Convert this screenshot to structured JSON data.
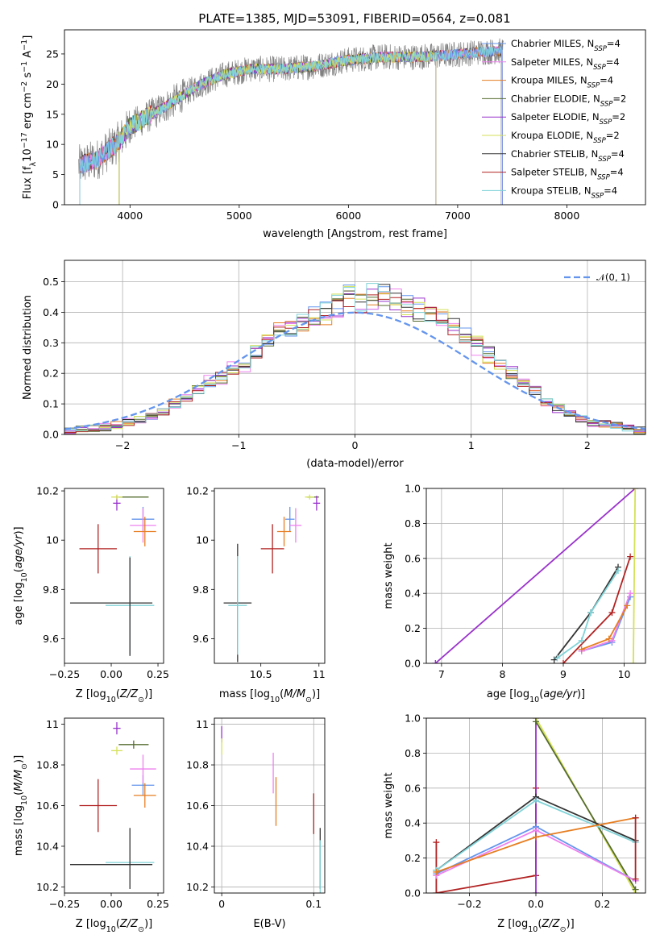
{
  "figure_title": "PLATE=1385, MJD=53091, FIBERID=0564, z=0.081",
  "colors": {
    "chabrier_miles": "#6495ed",
    "salpeter_miles": "#ee82ee",
    "kroupa_miles": "#e67e22",
    "chabrier_elodie": "#556b2f",
    "salpeter_elodie": "#9932cc",
    "kroupa_elodie": "#d4e157",
    "chabrier_stelib": "#333333",
    "salpeter_stelib": "#b22222",
    "kroupa_stelib": "#7fd3d8",
    "data": "#808080",
    "normal": "#6495ed",
    "grid": "#b0b0b0"
  },
  "chart_data": [
    {
      "id": "spectrum",
      "type": "line",
      "title": "PLATE=1385, MJD=53091, FIBERID=0564, z=0.081",
      "xlabel": "wavelength [Angstrom, rest frame]",
      "ylabel": "Flux [f_λ 10^-17 erg cm^-2 s^-1 A^-1]",
      "ylabel_parts": [
        "Flux [f",
        "λ",
        "10",
        "−17",
        " erg cm",
        "−2",
        " s",
        "−1",
        " A",
        "−1",
        "]"
      ],
      "xlim": [
        3400,
        8720
      ],
      "ylim": [
        0,
        29
      ],
      "xticks": [
        4000,
        5000,
        6000,
        7000,
        8000
      ],
      "yticks": [
        0,
        5,
        10,
        15,
        20,
        25
      ],
      "grid": false,
      "legend_position": "top-right",
      "legend": [
        {
          "name": "Chabrier MILES, N",
          "sub": "SSP",
          "tail": "=4",
          "color_key": "chabrier_miles"
        },
        {
          "name": "Salpeter MILES, N",
          "sub": "SSP",
          "tail": "=4",
          "color_key": "salpeter_miles"
        },
        {
          "name": "Kroupa MILES, N",
          "sub": "SSP",
          "tail": "=4",
          "color_key": "kroupa_miles"
        },
        {
          "name": "Chabrier ELODIE, N",
          "sub": "SSP",
          "tail": "=2",
          "color_key": "chabrier_elodie"
        },
        {
          "name": "Salpeter ELODIE, N",
          "sub": "SSP",
          "tail": "=2",
          "color_key": "salpeter_elodie"
        },
        {
          "name": "Kroupa ELODIE, N",
          "sub": "SSP",
          "tail": "=2",
          "color_key": "kroupa_elodie"
        },
        {
          "name": "Chabrier STELIB, N",
          "sub": "SSP",
          "tail": "=4",
          "color_key": "chabrier_stelib"
        },
        {
          "name": "Salpeter STELIB, N",
          "sub": "SSP",
          "tail": "=4",
          "color_key": "salpeter_stelib"
        },
        {
          "name": "Kroupa STELIB, N",
          "sub": "SSP",
          "tail": "=4",
          "color_key": "kroupa_stelib"
        }
      ],
      "continuum_knots": [
        [
          3530,
          6.5
        ],
        [
          3700,
          7.5
        ],
        [
          3900,
          10.5
        ],
        [
          4000,
          13.0
        ],
        [
          4300,
          16.0
        ],
        [
          4600,
          19.5
        ],
        [
          4850,
          21.5
        ],
        [
          5100,
          22.5
        ],
        [
          5400,
          22.5
        ],
        [
          5700,
          23.0
        ],
        [
          6000,
          24.0
        ],
        [
          6300,
          24.5
        ],
        [
          6600,
          24.5
        ],
        [
          6900,
          24.8
        ],
        [
          7200,
          25.3
        ],
        [
          7420,
          25.5
        ]
      ],
      "model_ranges": {
        "miles": [
          3540,
          7410
        ],
        "elodie": [
          3900,
          6800
        ],
        "stelib": [
          3540,
          7400
        ]
      }
    },
    {
      "id": "residual_hist",
      "type": "histogram",
      "xlabel": "(data-model)/error",
      "ylabel": "Normed distribution",
      "xlim": [
        -2.5,
        2.5
      ],
      "ylim": [
        0,
        0.57
      ],
      "xticks": [
        -2,
        -1,
        0,
        1,
        2
      ],
      "yticks": [
        0.0,
        0.1,
        0.2,
        0.3,
        0.4,
        0.5
      ],
      "grid": true,
      "legend_position": "top-right",
      "normal_label": "𝒩(0, 1)",
      "bins": {
        "start": -2.5,
        "width": 0.1,
        "count": 50
      },
      "base_distribution": [
        0.01,
        0.015,
        0.02,
        0.025,
        0.03,
        0.04,
        0.05,
        0.06,
        0.08,
        0.1,
        0.12,
        0.15,
        0.17,
        0.19,
        0.21,
        0.23,
        0.27,
        0.31,
        0.33,
        0.34,
        0.36,
        0.38,
        0.4,
        0.42,
        0.46,
        0.44,
        0.45,
        0.46,
        0.44,
        0.42,
        0.41,
        0.4,
        0.38,
        0.36,
        0.32,
        0.29,
        0.26,
        0.23,
        0.2,
        0.17,
        0.14,
        0.11,
        0.09,
        0.07,
        0.05,
        0.04,
        0.035,
        0.03,
        0.02,
        0.015
      ]
    },
    {
      "id": "age_vs_Z",
      "type": "errorbar",
      "xlabel": "Z [log10(Z/Z⊙)]",
      "ylabel": "age  [log10(age/yr)]",
      "xlim": [
        -0.25,
        0.28
      ],
      "ylim": [
        9.5,
        10.21
      ],
      "xticks": [
        -0.25,
        0.0,
        0.25
      ],
      "xticklabels": [
        "−0.25",
        "0.00",
        "0.25"
      ],
      "yticks": [
        9.6,
        9.8,
        10.0,
        10.2
      ],
      "grid": false,
      "points": [
        {
          "c": "chabrier_miles",
          "x": 0.17,
          "xerr": 0.06,
          "y": 10.085,
          "yerr": 0.05
        },
        {
          "c": "salpeter_miles",
          "x": 0.17,
          "xerr": 0.07,
          "y": 10.06,
          "yerr": 0.07
        },
        {
          "c": "kroupa_miles",
          "x": 0.18,
          "xerr": 0.06,
          "y": 10.035,
          "yerr": 0.06
        },
        {
          "c": "chabrier_elodie",
          "x": 0.12,
          "xerr": 0.08,
          "y": 10.175,
          "yerr": 0.0
        },
        {
          "c": "salpeter_elodie",
          "x": 0.03,
          "xerr": 0.02,
          "y": 10.15,
          "yerr": 0.03
        },
        {
          "c": "kroupa_elodie",
          "x": 0.03,
          "xerr": 0.03,
          "y": 10.175,
          "yerr": 0.01
        },
        {
          "c": "salpeter_stelib",
          "x": -0.07,
          "xerr": 0.1,
          "y": 9.965,
          "yerr": 0.1
        },
        {
          "c": "chabrier_stelib",
          "x": 0.0,
          "xerr": 0.22,
          "y": 9.745,
          "yerr": 0.0
        },
        {
          "c": "kroupa_stelib",
          "x": 0.1,
          "xerr": 0.13,
          "y": 9.735,
          "yerr": 0.2
        },
        {
          "c": "chabrier_stelib",
          "x": 0.1,
          "xerr": 0.0,
          "y": 9.73,
          "yerr": 0.2
        }
      ]
    },
    {
      "id": "age_vs_mass",
      "type": "errorbar",
      "xlabel": "mass [log10(M/M⊙)]",
      "ylabel": "",
      "xlim": [
        10.1,
        11.05
      ],
      "ylim": [
        9.5,
        10.21
      ],
      "xticks": [
        10.5,
        11.0
      ],
      "yticks": [
        9.6,
        9.8,
        10.0,
        10.2
      ],
      "grid": false,
      "points": [
        {
          "c": "chabrier_miles",
          "x": 10.75,
          "xerr": 0.04,
          "y": 10.085,
          "yerr": 0.05
        },
        {
          "c": "salpeter_miles",
          "x": 10.8,
          "xerr": 0.05,
          "y": 10.06,
          "yerr": 0.07
        },
        {
          "c": "kroupa_miles",
          "x": 10.7,
          "xerr": 0.06,
          "y": 10.035,
          "yerr": 0.06
        },
        {
          "c": "chabrier_elodie",
          "x": 10.95,
          "xerr": 0.05,
          "y": 10.175,
          "yerr": 0.0
        },
        {
          "c": "salpeter_elodie",
          "x": 10.98,
          "xerr": 0.03,
          "y": 10.15,
          "yerr": 0.03
        },
        {
          "c": "kroupa_elodie",
          "x": 10.92,
          "xerr": 0.04,
          "y": 10.175,
          "yerr": 0.01
        },
        {
          "c": "salpeter_stelib",
          "x": 10.6,
          "xerr": 0.1,
          "y": 9.965,
          "yerr": 0.1
        },
        {
          "c": "chabrier_stelib",
          "x": 10.3,
          "xerr": 0.12,
          "y": 9.745,
          "yerr": 0.24
        },
        {
          "c": "kroupa_stelib",
          "x": 10.3,
          "xerr": 0.08,
          "y": 9.735,
          "yerr": 0.2
        }
      ]
    },
    {
      "id": "weight_vs_age",
      "type": "line",
      "xlabel": "age  [log10(age/yr)]",
      "ylabel": "mass weight",
      "xlim": [
        6.75,
        10.35
      ],
      "ylim": [
        0,
        1.0
      ],
      "xticks": [
        7,
        8,
        9,
        10
      ],
      "yticks": [
        0.0,
        0.2,
        0.4,
        0.6,
        0.8,
        1.0
      ],
      "grid": true,
      "series": [
        {
          "c": "salpeter_elodie",
          "x": [
            6.9,
            10.18
          ],
          "y": [
            0.0,
            1.0
          ]
        },
        {
          "c": "kroupa_elodie",
          "x": [
            10.15,
            10.18
          ],
          "y": [
            0.0,
            1.0
          ]
        },
        {
          "c": "salpeter_stelib",
          "x": [
            9.0,
            9.8,
            10.1
          ],
          "y": [
            0.0,
            0.29,
            0.61
          ]
        },
        {
          "c": "chabrier_stelib",
          "x": [
            8.85,
            9.45,
            9.9
          ],
          "y": [
            0.02,
            0.29,
            0.55
          ]
        },
        {
          "c": "kroupa_stelib",
          "x": [
            8.9,
            9.3,
            9.45,
            9.9
          ],
          "y": [
            0.03,
            0.13,
            0.29,
            0.53
          ]
        },
        {
          "c": "chabrier_miles",
          "x": [
            9.3,
            9.8,
            10.1
          ],
          "y": [
            0.07,
            0.12,
            0.38
          ]
        },
        {
          "c": "salpeter_miles",
          "x": [
            9.3,
            9.8,
            10.1
          ],
          "y": [
            0.07,
            0.13,
            0.4
          ]
        },
        {
          "c": "kroupa_miles",
          "x": [
            9.3,
            9.75,
            10.05
          ],
          "y": [
            0.08,
            0.14,
            0.33
          ]
        }
      ]
    },
    {
      "id": "mass_vs_Z",
      "type": "errorbar",
      "xlabel": "Z [log10(Z/Z⊙)]",
      "ylabel": "mass [log10(M/M⊙)]",
      "xlim": [
        -0.25,
        0.28
      ],
      "ylim": [
        10.17,
        11.03
      ],
      "xticks": [
        -0.25,
        0.0,
        0.25
      ],
      "xticklabels": [
        "−0.25",
        "0.00",
        "0.25"
      ],
      "yticks": [
        10.2,
        10.4,
        10.6,
        10.8,
        11.0
      ],
      "grid": false,
      "points": [
        {
          "c": "chabrier_miles",
          "x": 0.17,
          "xerr": 0.06,
          "y": 10.7,
          "yerr": 0.05
        },
        {
          "c": "salpeter_miles",
          "x": 0.17,
          "xerr": 0.07,
          "y": 10.78,
          "yerr": 0.07
        },
        {
          "c": "kroupa_miles",
          "x": 0.18,
          "xerr": 0.06,
          "y": 10.65,
          "yerr": 0.06
        },
        {
          "c": "chabrier_elodie",
          "x": 0.12,
          "xerr": 0.08,
          "y": 10.9,
          "yerr": 0.02
        },
        {
          "c": "salpeter_elodie",
          "x": 0.03,
          "xerr": 0.02,
          "y": 10.98,
          "yerr": 0.03
        },
        {
          "c": "kroupa_elodie",
          "x": 0.03,
          "xerr": 0.03,
          "y": 10.87,
          "yerr": 0.02
        },
        {
          "c": "salpeter_stelib",
          "x": -0.07,
          "xerr": 0.1,
          "y": 10.6,
          "yerr": 0.13
        },
        {
          "c": "chabrier_stelib",
          "x": 0.0,
          "xerr": 0.22,
          "y": 10.31,
          "yerr": 0.0
        },
        {
          "c": "kroupa_stelib",
          "x": 0.1,
          "xerr": 0.13,
          "y": 10.32,
          "yerr": 0.0
        },
        {
          "c": "chabrier_stelib",
          "x": 0.1,
          "xerr": 0.0,
          "y": 10.34,
          "yerr": 0.15
        }
      ]
    },
    {
      "id": "mass_vs_ebv",
      "type": "errorbar",
      "xlabel": "E(B-V)",
      "ylabel": "",
      "xlim": [
        -0.008,
        0.112
      ],
      "ylim": [
        10.17,
        11.03
      ],
      "xticks": [
        0.0,
        0.1
      ],
      "yticks": [
        10.2,
        10.4,
        10.6,
        10.8,
        11.0
      ],
      "grid": true,
      "points": [
        {
          "c": "salpeter_elodie",
          "x": 0.0,
          "xerr": 0,
          "y": 10.95,
          "yerr": 0.04
        },
        {
          "c": "kroupa_elodie",
          "x": 0.0,
          "xerr": 0,
          "y": 10.89,
          "yerr": 0.04
        },
        {
          "c": "salpeter_miles",
          "x": 0.056,
          "xerr": 0,
          "y": 10.76,
          "yerr": 0.1
        },
        {
          "c": "kroupa_miles",
          "x": 0.059,
          "xerr": 0,
          "y": 10.62,
          "yerr": 0.12
        },
        {
          "c": "salpeter_stelib",
          "x": 0.1,
          "xerr": 0,
          "y": 10.56,
          "yerr": 0.1
        },
        {
          "c": "chabrier_stelib",
          "x": 0.107,
          "xerr": 0,
          "y": 10.34,
          "yerr": 0.15
        },
        {
          "c": "kroupa_stelib",
          "x": 0.107,
          "xerr": 0,
          "y": 10.3,
          "yerr": 0.13
        }
      ]
    },
    {
      "id": "weight_vs_Z",
      "type": "line",
      "xlabel": "Z [log10(Z/Z⊙)]",
      "ylabel": "mass weight",
      "xlim": [
        -0.33,
        0.33
      ],
      "ylim": [
        0,
        1.0
      ],
      "xticks": [
        -0.2,
        0.0,
        0.2
      ],
      "xticklabels": [
        "−0.2",
        "0.0",
        "0.2"
      ],
      "yticks": [
        0.0,
        0.2,
        0.4,
        0.6,
        0.8,
        1.0
      ],
      "grid": true,
      "series": [
        {
          "c": "salpeter_stelib",
          "x": [
            -0.3,
            -0.3,
            0.0,
            0.0
          ],
          "y": [
            0.29,
            0.0,
            0.1,
            0.6
          ]
        },
        {
          "c": "salpeter_elodie",
          "x": [
            0.0,
            0.0
          ],
          "y": [
            0.0,
            1.0
          ]
        },
        {
          "c": "kroupa_elodie",
          "x": [
            0.0,
            0.3
          ],
          "y": [
            1.0,
            0.0
          ]
        },
        {
          "c": "chabrier_elodie",
          "x": [
            0.0,
            0.3
          ],
          "y": [
            0.98,
            0.02
          ]
        },
        {
          "c": "chabrier_stelib",
          "x": [
            -0.3,
            0.0,
            0.3
          ],
          "y": [
            0.13,
            0.55,
            0.3
          ]
        },
        {
          "c": "kroupa_stelib",
          "x": [
            -0.3,
            0.0,
            0.3
          ],
          "y": [
            0.13,
            0.53,
            0.29
          ]
        },
        {
          "c": "chabrier_miles",
          "x": [
            -0.3,
            0.0,
            0.3
          ],
          "y": [
            0.11,
            0.38,
            0.07
          ]
        },
        {
          "c": "salpeter_miles",
          "x": [
            -0.3,
            0.0,
            0.3
          ],
          "y": [
            0.1,
            0.36,
            0.07
          ]
        },
        {
          "c": "kroupa_miles",
          "x": [
            -0.3,
            0.0,
            0.3
          ],
          "y": [
            0.12,
            0.32,
            0.43
          ]
        },
        {
          "c": "salpeter_stelib",
          "x": [
            0.3,
            0.3
          ],
          "y": [
            0.43,
            0.08
          ]
        }
      ]
    }
  ]
}
